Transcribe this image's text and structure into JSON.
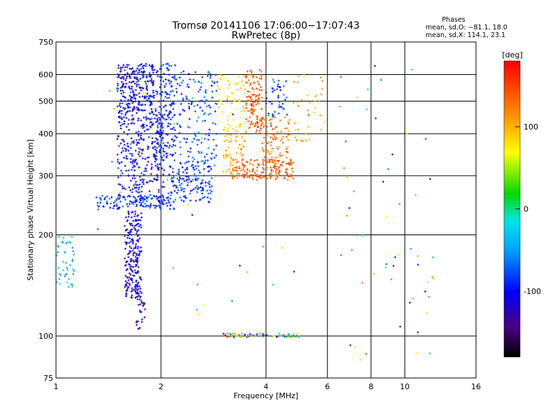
{
  "chart_data": {
    "type": "scatter",
    "title": "Tromsø 20141106 17:06:00−17:07:43",
    "subtitle": "RwPretec (8p)",
    "xlabel": "Frequency [MHz]",
    "ylabel": "Stationary phase Virtual Height [km]",
    "x_scale": "log",
    "y_scale": "log",
    "xlim": [
      1,
      16
    ],
    "ylim": [
      75,
      750
    ],
    "x_ticks": [
      1,
      2,
      4,
      6,
      8,
      10,
      16
    ],
    "y_ticks": [
      75,
      100,
      200,
      300,
      400,
      500,
      600,
      750
    ],
    "grid": true,
    "legend_text": {
      "heading": "Phases",
      "line1": "mean, sd,O: −81.1, 18.0",
      "line2": "mean, sd,X: 114.1, 23.1"
    },
    "colorbar": {
      "label": "[deg]",
      "range": [
        -180,
        180
      ],
      "ticks": [
        -100,
        0,
        100
      ]
    },
    "clusters": [
      {
        "x": [
          1.5,
          1.92
        ],
        "y": [
          460,
          650
        ],
        "phase": [
          -130,
          -80
        ],
        "n": 260
      },
      {
        "x": [
          1.5,
          2.05
        ],
        "y": [
          250,
          460
        ],
        "phase": [
          -130,
          -80
        ],
        "n": 320
      },
      {
        "x": [
          1.93,
          2.2
        ],
        "y": [
          330,
          650
        ],
        "phase": [
          -110,
          -70
        ],
        "n": 170
      },
      {
        "x": [
          2.1,
          2.8
        ],
        "y": [
          250,
          330
        ],
        "phase": [
          -110,
          -60
        ],
        "n": 150
      },
      {
        "x": [
          2.2,
          2.9
        ],
        "y": [
          320,
          620
        ],
        "phase": [
          -110,
          -50
        ],
        "n": 150
      },
      {
        "x": [
          1.3,
          2.2
        ],
        "y": [
          238,
          262
        ],
        "phase": [
          -110,
          -60
        ],
        "n": 120
      },
      {
        "x": [
          1.57,
          1.76
        ],
        "y": [
          130,
          235
        ],
        "phase": [
          -140,
          -90
        ],
        "n": 220
      },
      {
        "x": [
          1.7,
          1.8
        ],
        "y": [
          105,
          130
        ],
        "phase": [
          -140,
          -100
        ],
        "n": 25
      },
      {
        "x": [
          1.0,
          1.13
        ],
        "y": [
          140,
          200
        ],
        "phase": [
          -60,
          -20
        ],
        "n": 45
      },
      {
        "x": [
          2.9,
          3.5
        ],
        "y": [
          400,
          600
        ],
        "phase": [
          60,
          110
        ],
        "n": 70
      },
      {
        "x": [
          3.0,
          3.5
        ],
        "y": [
          300,
          400
        ],
        "phase": [
          80,
          130
        ],
        "n": 60
      },
      {
        "x": [
          3.5,
          3.9
        ],
        "y": [
          400,
          620
        ],
        "phase": [
          120,
          160
        ],
        "n": 120
      },
      {
        "x": [
          3.2,
          4.8
        ],
        "y": [
          290,
          335
        ],
        "phase": [
          120,
          160
        ],
        "n": 170
      },
      {
        "x": [
          3.9,
          4.7
        ],
        "y": [
          330,
          450
        ],
        "phase": [
          100,
          150
        ],
        "n": 90
      },
      {
        "x": [
          4.0,
          4.6
        ],
        "y": [
          450,
          580
        ],
        "phase": [
          -110,
          -60
        ],
        "n": 40
      },
      {
        "x": [
          4.8,
          5.9
        ],
        "y": [
          380,
          600
        ],
        "phase": [
          80,
          130
        ],
        "n": 40
      },
      {
        "x": [
          3.0,
          5.0
        ],
        "y": [
          99,
          102
        ],
        "phase": [
          -130,
          150
        ],
        "n": 70
      },
      {
        "x": [
          6.3,
          12.5
        ],
        "y": [
          80,
          650
        ],
        "phase": [
          -160,
          160
        ],
        "n": 55
      },
      {
        "x": [
          1.3,
          5.5
        ],
        "y": [
          110,
          600
        ],
        "phase": [
          -120,
          120
        ],
        "n": 40
      }
    ]
  }
}
